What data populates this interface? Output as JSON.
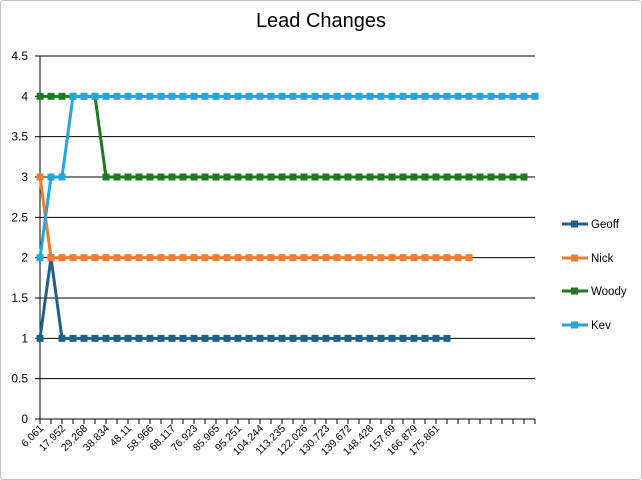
{
  "chart_data": {
    "type": "line",
    "title": "Lead Changes",
    "xlabel": "",
    "ylabel": "",
    "ylim": [
      0,
      4.5
    ],
    "y_ticks": [
      "0",
      "0.5",
      "1",
      "1.5",
      "2",
      "2.5",
      "3",
      "3.5",
      "4",
      "4.5"
    ],
    "x_tick_labels": [
      "6.061",
      "17.952",
      "29.268",
      "38.834",
      "48.11",
      "58.966",
      "68.117",
      "76.923",
      "85.965",
      "95.251",
      "104.244",
      "113.235",
      "122.026",
      "130.723",
      "139.672",
      "148.428",
      "157.69",
      "166.879",
      "175.861"
    ],
    "n_points": 46,
    "grid": true,
    "legend": "right",
    "series": [
      {
        "name": "Geoff",
        "color": "#1f5f8b",
        "values": [
          1,
          2,
          1,
          1,
          1,
          1,
          1,
          1,
          1,
          1,
          1,
          1,
          1,
          1,
          1,
          1,
          1,
          1,
          1,
          1,
          1,
          1,
          1,
          1,
          1,
          1,
          1,
          1,
          1,
          1,
          1,
          1,
          1,
          1,
          1,
          1,
          1,
          1
        ]
      },
      {
        "name": "Nick",
        "color": "#ed7d31",
        "values": [
          3,
          2,
          2,
          2,
          2,
          2,
          2,
          2,
          2,
          2,
          2,
          2,
          2,
          2,
          2,
          2,
          2,
          2,
          2,
          2,
          2,
          2,
          2,
          2,
          2,
          2,
          2,
          2,
          2,
          2,
          2,
          2,
          2,
          2,
          2,
          2,
          2,
          2,
          2,
          2
        ]
      },
      {
        "name": "Woody",
        "color": "#1e7a1e",
        "values": [
          4,
          4,
          4,
          4,
          4,
          4,
          3,
          3,
          3,
          3,
          3,
          3,
          3,
          3,
          3,
          3,
          3,
          3,
          3,
          3,
          3,
          3,
          3,
          3,
          3,
          3,
          3,
          3,
          3,
          3,
          3,
          3,
          3,
          3,
          3,
          3,
          3,
          3,
          3,
          3,
          3,
          3,
          3,
          3,
          3
        ]
      },
      {
        "name": "Kev",
        "color": "#25a5dd",
        "values": [
          2,
          3,
          3,
          4,
          4,
          4,
          4,
          4,
          4,
          4,
          4,
          4,
          4,
          4,
          4,
          4,
          4,
          4,
          4,
          4,
          4,
          4,
          4,
          4,
          4,
          4,
          4,
          4,
          4,
          4,
          4,
          4,
          4,
          4,
          4,
          4,
          4,
          4,
          4,
          4,
          4,
          4,
          4,
          4,
          4,
          4
        ]
      }
    ]
  }
}
